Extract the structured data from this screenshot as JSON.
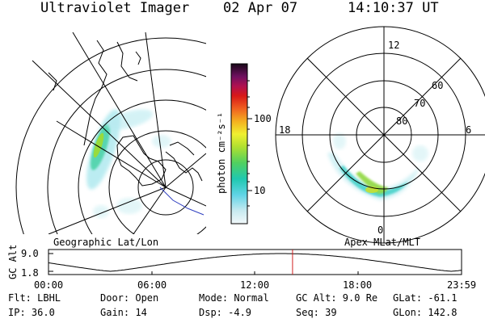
{
  "header": {
    "instrument": "Ultraviolet Imager",
    "date": "02 Apr 07",
    "time": "14:10:37 UT"
  },
  "geographic_panel": {
    "label": "Geographic Lat/Lon"
  },
  "magnetic_panel": {
    "label": "Apex MLat/MLT",
    "mlt_labels": [
      "12",
      "18",
      "6",
      "0"
    ],
    "mlat_labels": [
      "60",
      "70",
      "80"
    ]
  },
  "colorbar": {
    "unit_label": "photon cm⁻²s⁻¹",
    "ticks": [
      "100",
      "10"
    ]
  },
  "altitude_plot": {
    "axis_label": "GC Alt",
    "y_ticks": [
      "9.0",
      "1.8"
    ],
    "x_ticks": [
      "00:00",
      "06:00",
      "12:00",
      "18:00",
      "23:59"
    ],
    "current_time_marker_hours": 14.18
  },
  "info": {
    "filter": "Flt: LBHL",
    "door": "Door: Open",
    "mode": "Mode: Normal",
    "gc_alt": "GC Alt: 9.0 Re",
    "glat": "GLat: -61.1",
    "ip": "IP: 36.0",
    "gain": "Gain: 14",
    "dsp": "Dsp:   -4.9",
    "seq": "Seq: 39",
    "glon": "GLon: 142.8"
  },
  "colors": {
    "aurora_low": "#7fd8e8",
    "aurora_mid": "#36d0c8",
    "aurora_high": "#8fd23a",
    "time_marker": "#d02020"
  }
}
